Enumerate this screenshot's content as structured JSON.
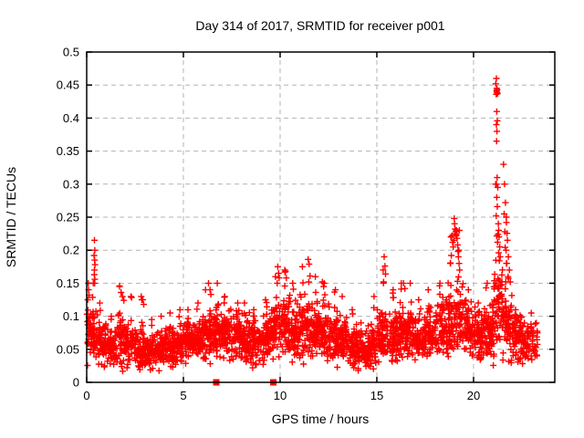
{
  "title": "Day 314 of 2017, SRMTID for receiver p001",
  "colors": {
    "marker": "#ff0000",
    "grid": "#b4b4b4",
    "frame": "#000000",
    "background": "#ffffff",
    "text": "#000000"
  },
  "chart_data": {
    "type": "scatter",
    "title": "Day 314 of 2017, SRMTID for receiver p001",
    "xlabel": "GPS time / hours",
    "ylabel": "SRMTID / TECUs",
    "xlim": [
      0,
      24.2
    ],
    "ylim": [
      0,
      0.5
    ],
    "x_ticks": [
      0,
      5,
      10,
      15,
      20
    ],
    "x_tick_labels": [
      "0",
      "5",
      "10",
      "15",
      "20"
    ],
    "y_ticks": [
      0,
      0.05,
      0.1,
      0.15,
      0.2,
      0.25,
      0.3,
      0.35,
      0.4,
      0.45,
      0.5
    ],
    "y_tick_labels": [
      "0",
      "0.05",
      "0.1",
      "0.15",
      "0.2",
      "0.25",
      "0.3",
      "0.35",
      "0.4",
      "0.45",
      "0.5"
    ],
    "grid": "dashed-major",
    "legend": "none",
    "marker": "plus",
    "marker_size_px": 7,
    "seed": 20170314,
    "density_bins_format": [
      "x_start",
      "x_end",
      "count",
      "band_center",
      "band_spread",
      "band_max"
    ],
    "density_bins": [
      [
        0.0,
        0.5,
        60,
        0.07,
        0.03,
        0.15
      ],
      [
        0.5,
        1.0,
        60,
        0.06,
        0.025,
        0.12
      ],
      [
        1.0,
        1.5,
        58,
        0.052,
        0.02,
        0.1
      ],
      [
        1.5,
        2.0,
        58,
        0.062,
        0.028,
        0.145
      ],
      [
        2.0,
        2.5,
        58,
        0.055,
        0.022,
        0.13
      ],
      [
        2.5,
        3.0,
        58,
        0.05,
        0.02,
        0.125
      ],
      [
        3.0,
        3.5,
        58,
        0.048,
        0.018,
        0.095
      ],
      [
        3.5,
        4.0,
        58,
        0.05,
        0.018,
        0.1
      ],
      [
        4.0,
        4.5,
        58,
        0.053,
        0.02,
        0.105
      ],
      [
        4.5,
        5.0,
        58,
        0.055,
        0.02,
        0.11
      ],
      [
        5.0,
        5.5,
        58,
        0.058,
        0.02,
        0.11
      ],
      [
        5.5,
        6.0,
        58,
        0.063,
        0.022,
        0.12
      ],
      [
        6.0,
        6.5,
        60,
        0.072,
        0.025,
        0.14
      ],
      [
        6.5,
        7.0,
        60,
        0.078,
        0.026,
        0.15
      ],
      [
        7.0,
        7.5,
        58,
        0.073,
        0.025,
        0.13
      ],
      [
        7.5,
        8.0,
        58,
        0.068,
        0.024,
        0.12
      ],
      [
        8.0,
        8.5,
        58,
        0.064,
        0.024,
        0.12
      ],
      [
        8.5,
        9.0,
        58,
        0.06,
        0.022,
        0.11
      ],
      [
        9.0,
        9.5,
        58,
        0.065,
        0.025,
        0.125
      ],
      [
        9.5,
        10.0,
        60,
        0.08,
        0.03,
        0.16
      ],
      [
        10.0,
        10.5,
        60,
        0.085,
        0.03,
        0.17
      ],
      [
        10.5,
        11.0,
        60,
        0.08,
        0.03,
        0.15
      ],
      [
        11.0,
        11.5,
        60,
        0.085,
        0.032,
        0.175
      ],
      [
        11.5,
        12.0,
        60,
        0.08,
        0.03,
        0.16
      ],
      [
        12.0,
        12.5,
        58,
        0.075,
        0.03,
        0.15
      ],
      [
        12.5,
        13.0,
        58,
        0.07,
        0.028,
        0.14
      ],
      [
        13.0,
        13.5,
        58,
        0.065,
        0.025,
        0.13
      ],
      [
        13.5,
        14.0,
        56,
        0.055,
        0.022,
        0.11
      ],
      [
        14.0,
        14.5,
        56,
        0.045,
        0.02,
        0.09
      ],
      [
        14.5,
        15.0,
        56,
        0.055,
        0.025,
        0.13
      ],
      [
        15.0,
        15.5,
        58,
        0.07,
        0.03,
        0.17
      ],
      [
        15.5,
        16.0,
        58,
        0.065,
        0.026,
        0.14
      ],
      [
        16.0,
        16.5,
        58,
        0.07,
        0.026,
        0.15
      ],
      [
        16.5,
        17.0,
        58,
        0.07,
        0.028,
        0.15
      ],
      [
        17.0,
        17.5,
        58,
        0.065,
        0.025,
        0.125
      ],
      [
        17.5,
        18.0,
        58,
        0.07,
        0.026,
        0.14
      ],
      [
        18.0,
        18.5,
        58,
        0.08,
        0.03,
        0.15
      ],
      [
        18.5,
        19.0,
        60,
        0.09,
        0.035,
        0.22
      ],
      [
        19.0,
        19.5,
        60,
        0.1,
        0.04,
        0.23
      ],
      [
        19.5,
        20.0,
        58,
        0.08,
        0.03,
        0.14
      ],
      [
        20.0,
        20.5,
        58,
        0.07,
        0.026,
        0.12
      ],
      [
        20.5,
        21.0,
        58,
        0.08,
        0.03,
        0.15
      ],
      [
        21.0,
        21.5,
        60,
        0.11,
        0.05,
        0.3
      ],
      [
        21.5,
        22.0,
        60,
        0.09,
        0.035,
        0.25
      ],
      [
        22.0,
        22.5,
        58,
        0.065,
        0.025,
        0.11
      ],
      [
        22.5,
        23.3,
        70,
        0.062,
        0.022,
        0.105
      ]
    ],
    "outlier_points": [
      [
        0.4,
        0.215
      ],
      [
        0.42,
        0.2
      ],
      [
        0.38,
        0.192
      ],
      [
        0.41,
        0.185
      ],
      [
        0.43,
        0.178
      ],
      [
        0.4,
        0.17
      ],
      [
        0.39,
        0.163
      ],
      [
        0.42,
        0.156
      ],
      [
        0.41,
        0.15
      ],
      [
        0.08,
        0.15
      ],
      [
        0.1,
        0.14
      ],
      [
        0.12,
        0.132
      ],
      [
        0.05,
        0.125
      ],
      [
        1.7,
        0.146
      ],
      [
        1.78,
        0.136
      ],
      [
        1.85,
        0.13
      ],
      [
        1.92,
        0.124
      ],
      [
        2.82,
        0.13
      ],
      [
        2.9,
        0.125
      ],
      [
        2.95,
        0.118
      ],
      [
        6.3,
        0.15
      ],
      [
        6.38,
        0.14
      ],
      [
        6.42,
        0.133
      ],
      [
        9.88,
        0.175
      ],
      [
        9.92,
        0.165
      ],
      [
        9.95,
        0.158
      ],
      [
        9.85,
        0.15
      ],
      [
        10.28,
        0.168
      ],
      [
        10.32,
        0.158
      ],
      [
        11.45,
        0.186
      ],
      [
        11.5,
        0.179
      ],
      [
        11.55,
        0.161
      ],
      [
        11.48,
        0.152
      ],
      [
        12.18,
        0.152
      ],
      [
        12.25,
        0.145
      ],
      [
        15.38,
        0.19
      ],
      [
        15.42,
        0.176
      ],
      [
        15.45,
        0.164
      ],
      [
        15.35,
        0.152
      ],
      [
        16.38,
        0.15
      ],
      [
        16.45,
        0.142
      ],
      [
        18.88,
        0.222
      ],
      [
        18.92,
        0.212
      ],
      [
        18.95,
        0.205
      ],
      [
        19.0,
        0.248
      ],
      [
        19.02,
        0.24
      ],
      [
        19.05,
        0.232
      ],
      [
        19.08,
        0.228
      ],
      [
        19.1,
        0.224
      ],
      [
        19.12,
        0.23
      ],
      [
        19.15,
        0.218
      ],
      [
        19.05,
        0.225
      ],
      [
        19.1,
        0.222
      ],
      [
        18.98,
        0.215
      ],
      [
        19.18,
        0.208
      ],
      [
        19.2,
        0.198
      ],
      [
        19.22,
        0.19
      ],
      [
        19.25,
        0.18
      ],
      [
        19.28,
        0.17
      ],
      [
        18.85,
        0.192
      ],
      [
        18.8,
        0.18
      ],
      [
        21.18,
        0.46
      ],
      [
        21.15,
        0.452
      ],
      [
        21.2,
        0.445
      ],
      [
        21.22,
        0.443
      ],
      [
        21.19,
        0.441
      ],
      [
        21.21,
        0.439
      ],
      [
        21.24,
        0.437
      ],
      [
        21.17,
        0.436
      ],
      [
        21.2,
        0.41
      ],
      [
        21.23,
        0.396
      ],
      [
        21.18,
        0.39
      ],
      [
        21.21,
        0.38
      ],
      [
        21.19,
        0.365
      ],
      [
        21.22,
        0.31
      ],
      [
        21.18,
        0.3
      ],
      [
        21.25,
        0.295
      ],
      [
        21.2,
        0.28
      ],
      [
        21.23,
        0.266
      ],
      [
        21.17,
        0.252
      ],
      [
        21.28,
        0.24
      ],
      [
        21.3,
        0.23
      ],
      [
        21.26,
        0.224
      ],
      [
        21.32,
        0.22
      ],
      [
        21.24,
        0.212
      ],
      [
        21.35,
        0.205
      ],
      [
        21.3,
        0.196
      ],
      [
        21.38,
        0.19
      ],
      [
        21.33,
        0.184
      ],
      [
        21.55,
        0.33
      ],
      [
        21.6,
        0.3
      ],
      [
        21.65,
        0.272
      ],
      [
        21.58,
        0.255
      ],
      [
        21.7,
        0.242
      ],
      [
        21.62,
        0.228
      ],
      [
        21.75,
        0.215
      ],
      [
        21.68,
        0.2
      ],
      [
        21.8,
        0.19
      ],
      [
        21.72,
        0.18
      ],
      [
        21.85,
        0.17
      ],
      [
        21.78,
        0.16
      ],
      [
        21.9,
        0.152
      ]
    ],
    "zero_square_markers_x": [
      6.7,
      9.65
    ]
  }
}
